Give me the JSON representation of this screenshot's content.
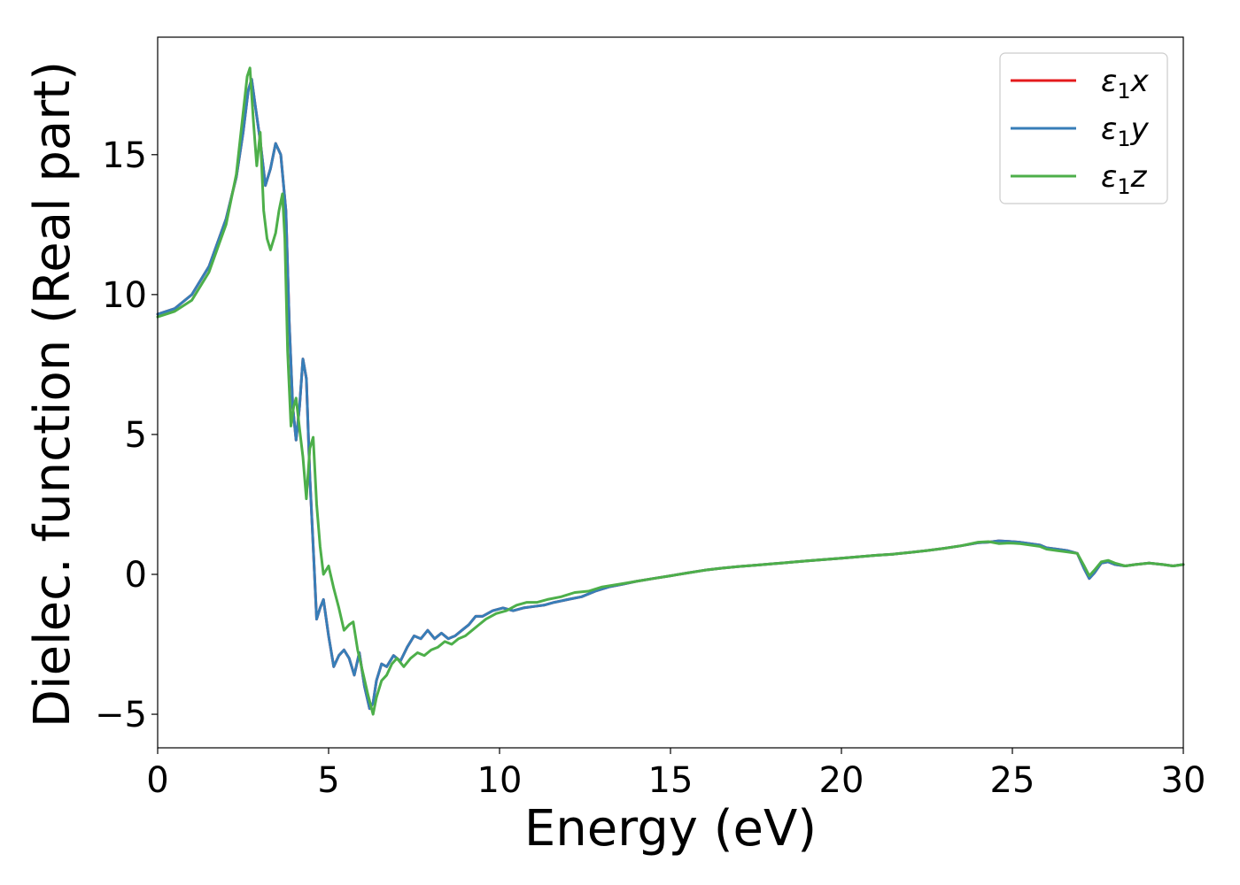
{
  "chart_data": {
    "type": "line",
    "title": "",
    "xlabel": "Energy (eV)",
    "ylabel": "Dielec. function (Real part)",
    "xlim": [
      0,
      30
    ],
    "ylim": [
      -6.2,
      19.2
    ],
    "xticks": [
      0,
      5,
      10,
      15,
      20,
      25,
      30
    ],
    "xtick_labels": [
      "0",
      "5",
      "10",
      "15",
      "20",
      "25",
      "30"
    ],
    "yticks": [
      -5,
      0,
      5,
      10,
      15
    ],
    "ytick_labels": [
      "−5",
      "0",
      "5",
      "10",
      "15"
    ],
    "grid": false,
    "legend_position": "top-right",
    "series": [
      {
        "name": "ε₁x",
        "legend": {
          "symbol": "ε",
          "sub": "1",
          "axis": "x"
        },
        "color": "#e41a1c",
        "x": [
          0,
          0.5,
          1.0,
          1.5,
          2.0,
          2.3,
          2.5,
          2.65,
          2.75,
          2.85,
          3.0,
          3.15,
          3.3,
          3.45,
          3.6,
          3.75,
          3.85,
          3.95,
          4.05,
          4.15,
          4.25,
          4.35,
          4.45,
          4.55,
          4.65,
          4.75,
          4.85,
          5.0,
          5.15,
          5.3,
          5.45,
          5.6,
          5.75,
          5.9,
          6.05,
          6.2,
          6.3,
          6.4,
          6.55,
          6.7,
          6.9,
          7.1,
          7.3,
          7.5,
          7.7,
          7.9,
          8.1,
          8.3,
          8.5,
          8.7,
          8.9,
          9.1,
          9.3,
          9.5,
          9.8,
          10.1,
          10.4,
          10.7,
          11.0,
          11.3,
          11.6,
          12.0,
          12.4,
          12.8,
          13.2,
          13.6,
          14.0,
          14.5,
          15.0,
          15.5,
          16.0,
          16.5,
          17.0,
          17.5,
          18.0,
          18.5,
          19.0,
          19.5,
          20.0,
          20.5,
          21.0,
          21.5,
          22.0,
          22.5,
          23.0,
          23.5,
          24.0,
          24.3,
          24.6,
          24.9,
          25.2,
          25.5,
          25.8,
          26.0,
          26.3,
          26.6,
          26.9,
          27.1,
          27.25,
          27.4,
          27.6,
          27.8,
          28.0,
          28.3,
          28.6,
          29.0,
          29.4,
          29.7,
          30.0
        ],
        "values": [
          9.3,
          9.5,
          10.0,
          11.0,
          12.7,
          14.2,
          15.8,
          17.3,
          17.7,
          16.8,
          15.5,
          13.9,
          14.5,
          15.4,
          15.0,
          13.0,
          9.0,
          6.0,
          4.8,
          6.0,
          7.7,
          7.0,
          3.5,
          1.0,
          -1.6,
          -1.2,
          -0.9,
          -2.2,
          -3.3,
          -2.9,
          -2.7,
          -3.0,
          -3.6,
          -2.8,
          -4.0,
          -4.8,
          -4.6,
          -3.8,
          -3.2,
          -3.3,
          -2.9,
          -3.1,
          -2.6,
          -2.2,
          -2.3,
          -2.0,
          -2.3,
          -2.1,
          -2.3,
          -2.2,
          -2.0,
          -1.8,
          -1.5,
          -1.5,
          -1.3,
          -1.2,
          -1.3,
          -1.2,
          -1.15,
          -1.1,
          -1.0,
          -0.9,
          -0.8,
          -0.6,
          -0.45,
          -0.35,
          -0.25,
          -0.15,
          -0.05,
          0.05,
          0.15,
          0.22,
          0.28,
          0.33,
          0.38,
          0.43,
          0.48,
          0.53,
          0.58,
          0.63,
          0.68,
          0.72,
          0.78,
          0.85,
          0.93,
          1.02,
          1.13,
          1.15,
          1.2,
          1.18,
          1.15,
          1.1,
          1.05,
          0.95,
          0.9,
          0.85,
          0.75,
          0.2,
          -0.15,
          0.05,
          0.4,
          0.45,
          0.35,
          0.3,
          0.35,
          0.4,
          0.35,
          0.3,
          0.35
        ]
      },
      {
        "name": "ε₁y",
        "legend": {
          "symbol": "ε",
          "sub": "1",
          "axis": "y"
        },
        "color": "#377eb8",
        "x": [
          0,
          0.5,
          1.0,
          1.5,
          2.0,
          2.3,
          2.5,
          2.65,
          2.75,
          2.85,
          3.0,
          3.15,
          3.3,
          3.45,
          3.6,
          3.75,
          3.85,
          3.95,
          4.05,
          4.15,
          4.25,
          4.35,
          4.45,
          4.55,
          4.65,
          4.75,
          4.85,
          5.0,
          5.15,
          5.3,
          5.45,
          5.6,
          5.75,
          5.9,
          6.05,
          6.2,
          6.3,
          6.4,
          6.55,
          6.7,
          6.9,
          7.1,
          7.3,
          7.5,
          7.7,
          7.9,
          8.1,
          8.3,
          8.5,
          8.7,
          8.9,
          9.1,
          9.3,
          9.5,
          9.8,
          10.1,
          10.4,
          10.7,
          11.0,
          11.3,
          11.6,
          12.0,
          12.4,
          12.8,
          13.2,
          13.6,
          14.0,
          14.5,
          15.0,
          15.5,
          16.0,
          16.5,
          17.0,
          17.5,
          18.0,
          18.5,
          19.0,
          19.5,
          20.0,
          20.5,
          21.0,
          21.5,
          22.0,
          22.5,
          23.0,
          23.5,
          24.0,
          24.3,
          24.6,
          24.9,
          25.2,
          25.5,
          25.8,
          26.0,
          26.3,
          26.6,
          26.9,
          27.1,
          27.25,
          27.4,
          27.6,
          27.8,
          28.0,
          28.3,
          28.6,
          29.0,
          29.4,
          29.7,
          30.0
        ],
        "values": [
          9.3,
          9.5,
          10.0,
          11.0,
          12.7,
          14.2,
          15.8,
          17.3,
          17.7,
          16.8,
          15.5,
          13.9,
          14.5,
          15.4,
          15.0,
          13.0,
          9.0,
          6.0,
          4.8,
          6.0,
          7.7,
          7.0,
          3.5,
          1.0,
          -1.6,
          -1.2,
          -0.9,
          -2.2,
          -3.3,
          -2.9,
          -2.7,
          -3.0,
          -3.6,
          -2.8,
          -4.0,
          -4.8,
          -4.6,
          -3.8,
          -3.2,
          -3.3,
          -2.9,
          -3.1,
          -2.6,
          -2.2,
          -2.3,
          -2.0,
          -2.3,
          -2.1,
          -2.3,
          -2.2,
          -2.0,
          -1.8,
          -1.5,
          -1.5,
          -1.3,
          -1.2,
          -1.3,
          -1.2,
          -1.15,
          -1.1,
          -1.0,
          -0.9,
          -0.8,
          -0.6,
          -0.45,
          -0.35,
          -0.25,
          -0.15,
          -0.05,
          0.05,
          0.15,
          0.22,
          0.28,
          0.33,
          0.38,
          0.43,
          0.48,
          0.53,
          0.58,
          0.63,
          0.68,
          0.72,
          0.78,
          0.85,
          0.93,
          1.02,
          1.13,
          1.15,
          1.2,
          1.18,
          1.15,
          1.1,
          1.05,
          0.95,
          0.9,
          0.85,
          0.75,
          0.2,
          -0.15,
          0.05,
          0.4,
          0.45,
          0.35,
          0.3,
          0.35,
          0.4,
          0.35,
          0.3,
          0.35
        ]
      },
      {
        "name": "ε₁z",
        "legend": {
          "symbol": "ε",
          "sub": "1",
          "axis": "z"
        },
        "color": "#4daf4a",
        "x": [
          0,
          0.5,
          1.0,
          1.5,
          2.0,
          2.3,
          2.5,
          2.62,
          2.7,
          2.8,
          2.9,
          3.0,
          3.1,
          3.2,
          3.3,
          3.45,
          3.55,
          3.65,
          3.72,
          3.8,
          3.9,
          3.98,
          4.05,
          4.15,
          4.25,
          4.35,
          4.45,
          4.55,
          4.65,
          4.75,
          4.85,
          5.0,
          5.15,
          5.3,
          5.45,
          5.6,
          5.72,
          5.85,
          6.0,
          6.15,
          6.3,
          6.4,
          6.55,
          6.7,
          6.85,
          7.0,
          7.2,
          7.4,
          7.6,
          7.8,
          8.0,
          8.2,
          8.4,
          8.6,
          8.8,
          9.0,
          9.2,
          9.4,
          9.6,
          9.9,
          10.2,
          10.5,
          10.8,
          11.1,
          11.4,
          11.8,
          12.2,
          12.6,
          13.0,
          13.5,
          14.0,
          14.5,
          15.0,
          15.5,
          16.0,
          16.5,
          17.0,
          17.5,
          18.0,
          18.5,
          19.0,
          19.5,
          20.0,
          20.5,
          21.0,
          21.5,
          22.0,
          22.5,
          23.0,
          23.5,
          24.0,
          24.3,
          24.6,
          24.9,
          25.2,
          25.5,
          25.8,
          26.0,
          26.3,
          26.6,
          26.9,
          27.1,
          27.25,
          27.4,
          27.6,
          27.8,
          28.0,
          28.3,
          28.6,
          29.0,
          29.4,
          29.7,
          30.0
        ],
        "values": [
          9.2,
          9.4,
          9.8,
          10.8,
          12.5,
          14.3,
          16.5,
          17.8,
          18.1,
          16.2,
          14.6,
          15.8,
          13.0,
          12.0,
          11.6,
          12.2,
          13.0,
          13.6,
          12.0,
          8.0,
          5.3,
          6.0,
          6.3,
          5.2,
          4.2,
          2.7,
          4.5,
          4.9,
          2.5,
          1.0,
          0.0,
          0.3,
          -0.5,
          -1.2,
          -2.0,
          -1.8,
          -1.7,
          -2.7,
          -3.5,
          -4.3,
          -5.0,
          -4.4,
          -3.8,
          -3.6,
          -3.2,
          -3.0,
          -3.3,
          -3.0,
          -2.8,
          -2.9,
          -2.7,
          -2.6,
          -2.4,
          -2.5,
          -2.3,
          -2.2,
          -2.0,
          -1.8,
          -1.6,
          -1.4,
          -1.3,
          -1.1,
          -1.0,
          -1.0,
          -0.9,
          -0.8,
          -0.65,
          -0.6,
          -0.45,
          -0.35,
          -0.25,
          -0.15,
          -0.05,
          0.05,
          0.15,
          0.22,
          0.28,
          0.33,
          0.38,
          0.43,
          0.48,
          0.53,
          0.58,
          0.63,
          0.68,
          0.72,
          0.78,
          0.85,
          0.93,
          1.02,
          1.15,
          1.17,
          1.1,
          1.12,
          1.1,
          1.05,
          1.0,
          0.9,
          0.85,
          0.8,
          0.75,
          0.3,
          -0.05,
          0.15,
          0.45,
          0.5,
          0.4,
          0.3,
          0.35,
          0.4,
          0.35,
          0.3,
          0.35
        ]
      }
    ]
  }
}
